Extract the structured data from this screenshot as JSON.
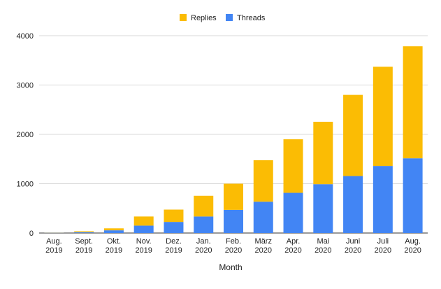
{
  "chart_data": {
    "type": "bar",
    "stacked": true,
    "categories": [
      [
        "Aug.",
        "2019"
      ],
      [
        "Sept.",
        "2019"
      ],
      [
        "Okt.",
        "2019"
      ],
      [
        "Nov.",
        "2019"
      ],
      [
        "Dez.",
        "2019"
      ],
      [
        "Jan.",
        "2020"
      ],
      [
        "Feb.",
        "2020"
      ],
      [
        "März",
        "2020"
      ],
      [
        "Apr.",
        "2020"
      ],
      [
        "Mai",
        "2020"
      ],
      [
        "Juni",
        "2020"
      ],
      [
        "Juli",
        "2020"
      ],
      [
        "Aug.",
        "2020"
      ]
    ],
    "series": [
      {
        "name": "Threads",
        "color": "#4285F4",
        "values": [
          3,
          15,
          55,
          150,
          225,
          335,
          470,
          635,
          815,
          990,
          1155,
          1360,
          1515
        ]
      },
      {
        "name": "Replies",
        "color": "#FBBC04",
        "values": [
          2,
          20,
          40,
          185,
          250,
          420,
          530,
          840,
          1085,
          1265,
          1645,
          2010,
          2270
        ]
      }
    ],
    "legend": {
      "position": "top",
      "order": [
        "Replies",
        "Threads"
      ]
    },
    "xlabel": "Month",
    "ylabel": "",
    "ylim": [
      0,
      4000
    ],
    "yticks": [
      0,
      1000,
      2000,
      3000,
      4000
    ],
    "grid": true
  }
}
